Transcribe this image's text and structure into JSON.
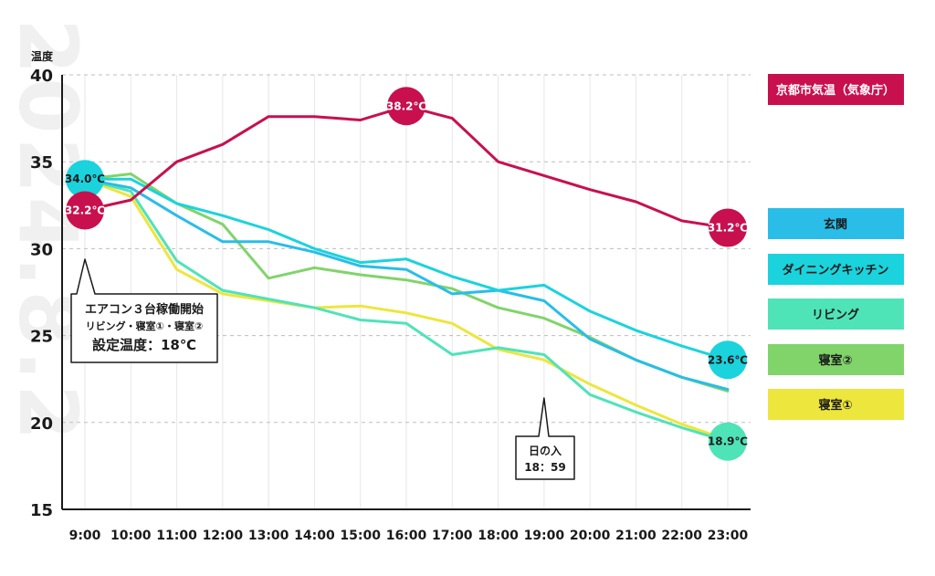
{
  "chart_data": {
    "type": "line",
    "watermark": "2024.8.2",
    "ylabel": "温度",
    "ylim": [
      15,
      40
    ],
    "yticks": [
      15,
      20,
      25,
      30,
      35,
      40
    ],
    "categories": [
      "9:00",
      "10:00",
      "11:00",
      "12:00",
      "13:00",
      "14:00",
      "15:00",
      "16:00",
      "17:00",
      "18:00",
      "19:00",
      "20:00",
      "21:00",
      "22:00",
      "23:00"
    ],
    "grid": true,
    "legend_position": "right",
    "series": [
      {
        "name": "京都市気温（気象庁）",
        "color": "#c8104e",
        "text_color": "#ffffff",
        "values": [
          32.2,
          32.8,
          35.0,
          36.0,
          37.6,
          37.6,
          37.4,
          38.2,
          37.5,
          35.0,
          34.2,
          33.4,
          32.7,
          31.6,
          31.2
        ]
      },
      {
        "name": "玄関",
        "color": "#29bde8",
        "text_color": "#1a1a1a",
        "values": [
          34.0,
          33.5,
          31.9,
          30.4,
          30.4,
          29.8,
          29.0,
          28.8,
          27.4,
          27.6,
          27.0,
          24.8,
          23.6,
          22.6,
          21.9
        ]
      },
      {
        "name": "ダイニングキッチン",
        "color": "#1ad3dd",
        "text_color": "#1a1a1a",
        "values": [
          34.0,
          34.0,
          32.6,
          31.9,
          31.1,
          30.0,
          29.2,
          29.4,
          28.4,
          27.6,
          27.9,
          26.4,
          25.3,
          24.4,
          23.6
        ]
      },
      {
        "name": "リビング",
        "color": "#4fe3b8",
        "text_color": "#1a1a1a",
        "values": [
          34.0,
          33.3,
          29.3,
          27.6,
          27.1,
          26.6,
          25.9,
          25.7,
          23.9,
          24.3,
          23.9,
          21.6,
          20.6,
          19.7,
          18.9
        ]
      },
      {
        "name": "寝室②",
        "color": "#80d46a",
        "text_color": "#1a1a1a",
        "values": [
          34.0,
          34.3,
          32.6,
          31.4,
          28.3,
          28.9,
          28.5,
          28.2,
          27.7,
          26.6,
          26.0,
          24.9,
          23.6,
          22.6,
          21.8
        ]
      },
      {
        "name": "寝室①",
        "color": "#ede63c",
        "text_color": "#1a1a1a",
        "values": [
          34.0,
          33.0,
          28.8,
          27.4,
          27.0,
          26.6,
          26.7,
          26.3,
          25.7,
          24.2,
          23.6,
          22.2,
          21.0,
          19.9,
          19.0
        ]
      }
    ],
    "bubbles": [
      {
        "label": "34.0℃",
        "x": "9:00",
        "y": 34.0,
        "series": 2
      },
      {
        "label": "32.2℃",
        "x": "9:00",
        "y": 32.2,
        "series": 0
      },
      {
        "label": "38.2℃",
        "x": "16:00",
        "y": 38.2,
        "series": 0
      },
      {
        "label": "31.2℃",
        "x": "23:00",
        "y": 31.2,
        "series": 0
      },
      {
        "label": "23.6℃",
        "x": "23:00",
        "y": 23.6,
        "series": 2
      },
      {
        "label": "18.9℃",
        "x": "23:00",
        "y": 18.9,
        "series": 3
      }
    ],
    "annotations": [
      {
        "lines": [
          "エアコン３台稼働開始",
          "リビング・寝室①・寝室②",
          "設定温度：18℃"
        ],
        "x": "9:00"
      },
      {
        "lines": [
          "日の入",
          "18：59"
        ],
        "x": "19:00"
      }
    ]
  }
}
